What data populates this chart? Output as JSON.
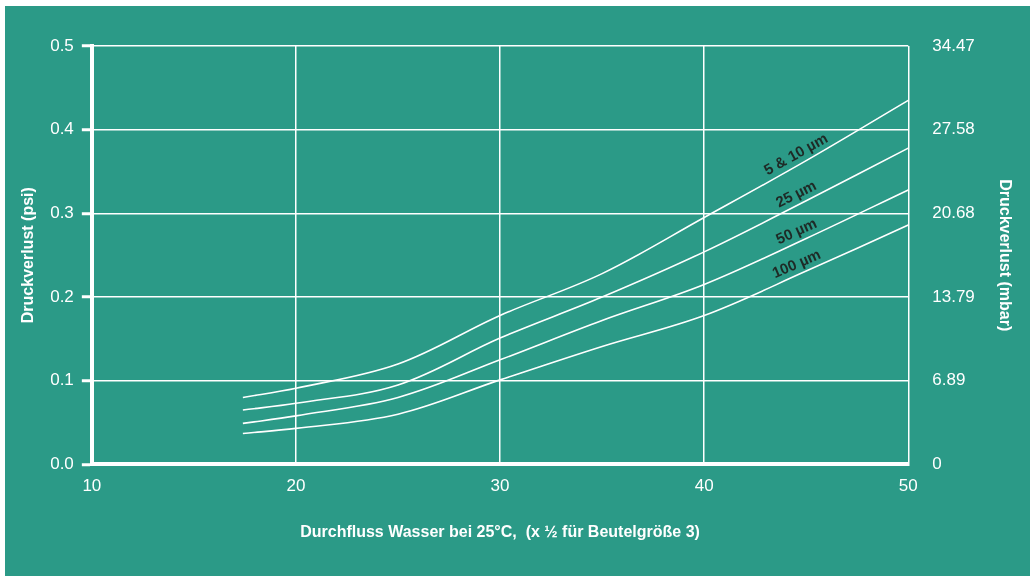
{
  "chart_data": {
    "type": "line",
    "xlabel": "Durchfluss Wasser bei 25°C,  (x ½ für Beutelgröße 3)",
    "ylabel": "Druckverlust (psi)",
    "y2label": "Druckverlust (mbar)",
    "xlim": [
      10,
      50
    ],
    "xticks": [
      10,
      20,
      30,
      40,
      50
    ],
    "ylim": [
      0,
      0.5
    ],
    "yticks": [
      {
        "value": 0,
        "label": "0.0"
      },
      0.1,
      0.2,
      0.3,
      0.4,
      0.5
    ],
    "y2lim": [
      0,
      34.47
    ],
    "y2ticks": [
      0,
      6.89,
      13.79,
      20.68,
      27.58,
      34.47
    ],
    "grid": true,
    "legend": false,
    "marker": "none",
    "line_style": "solid",
    "x": [
      17.4,
      20,
      25,
      30,
      35,
      40,
      45,
      50
    ],
    "series": [
      {
        "name": "5 & 10 µm",
        "color": "#ffffff",
        "values": [
          0.08,
          0.091,
          0.12,
          0.178,
          0.228,
          0.295,
          0.363,
          0.435
        ]
      },
      {
        "name": "25 µm",
        "color": "#ffffff",
        "values": [
          0.065,
          0.073,
          0.095,
          0.151,
          0.2,
          0.254,
          0.315,
          0.378
        ]
      },
      {
        "name": "50 µm",
        "color": "#ffffff",
        "values": [
          0.049,
          0.058,
          0.08,
          0.125,
          0.172,
          0.215,
          0.27,
          0.328
        ]
      },
      {
        "name": "100 µm",
        "color": "#ffffff",
        "values": [
          0.037,
          0.043,
          0.06,
          0.101,
          0.141,
          0.178,
          0.231,
          0.286
        ]
      }
    ]
  }
}
